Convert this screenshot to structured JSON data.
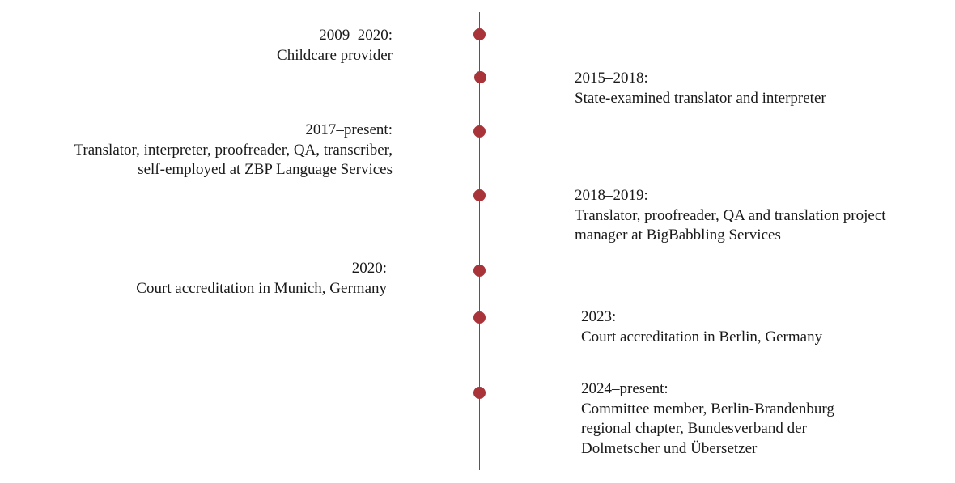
{
  "timeline": {
    "line_color": "#a8343a",
    "entries": [
      {
        "period": "2009–2020:",
        "lines": [
          "Childcare provider"
        ]
      },
      {
        "period": "2015–2018:",
        "lines": [
          "State-examined translator and interpreter"
        ]
      },
      {
        "period": "2017–present:",
        "lines": [
          "Translator, interpreter, proofreader, QA, transcriber,",
          "self-employed at ZBP Language Services"
        ]
      },
      {
        "period": "2018–2019:",
        "lines": [
          "Translator, proofreader, QA and translation project",
          "manager at BigBabbling Services"
        ]
      },
      {
        "period": "2020:",
        "lines": [
          "Court accreditation in Munich, Germany"
        ]
      },
      {
        "period": "2023:",
        "lines": [
          "Court accreditation in Berlin, Germany"
        ]
      },
      {
        "period": "2024–present:",
        "lines": [
          "Committee member, Berlin-Brandenburg",
          "regional chapter, Bundesverband der",
          "Dolmetscher und Übersetzer"
        ]
      }
    ]
  }
}
